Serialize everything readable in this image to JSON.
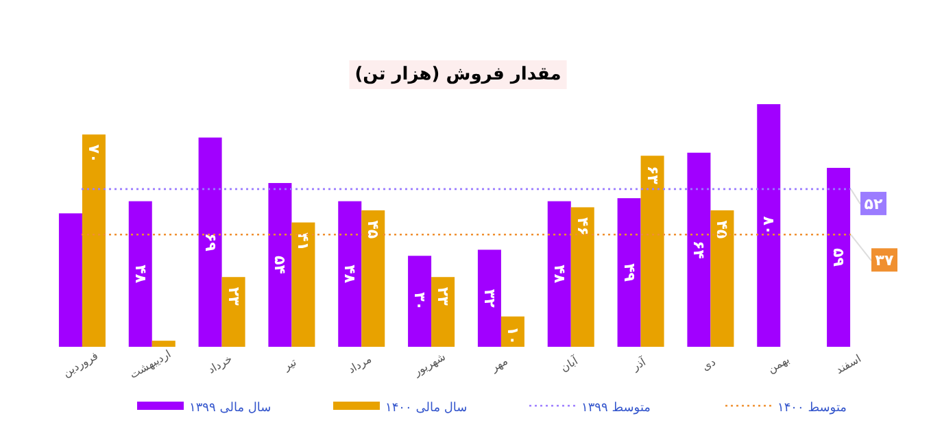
{
  "chart_data": {
    "type": "bar",
    "title": "مقدار فروش (هزار تن)",
    "categories": [
      "فروردین",
      "اردیبهشت",
      "خرداد",
      "تیر",
      "مرداد",
      "شهریور",
      "مهر",
      "آبان",
      "آذر",
      "دی",
      "بهمن",
      "اسفند"
    ],
    "series": [
      {
        "name": "سال مالی ۱۳۹۹",
        "color": "#a100ff",
        "values": [
          44,
          48,
          69,
          54,
          48,
          30,
          32,
          48,
          49,
          64,
          80,
          59
        ],
        "value_labels": [
          null,
          "۴۸",
          "۶۹",
          "۵۴",
          "۴۸",
          "۳۰",
          "۳۲",
          "۴۸",
          "۴۹",
          "۶۴",
          "۸۰",
          "۵۹"
        ]
      },
      {
        "name": "سال مالی ۱۴۰۰",
        "color": "#e8a200",
        "values": [
          70,
          2,
          23,
          41,
          45,
          23,
          10,
          46,
          63,
          45,
          null,
          null
        ],
        "value_labels": [
          "۷۰",
          null,
          "۲۳",
          "۴۱",
          "۴۵",
          "۲۳",
          "۱۰",
          "۴۶",
          "۶۳",
          "۴۵",
          null,
          null
        ]
      },
      {
        "name": "متوسط ۱۳۹۹",
        "type": "line",
        "line_style": "dotted",
        "color": "#9b7cff",
        "values": [
          52,
          52,
          52,
          52,
          52,
          52,
          52,
          52,
          52,
          52,
          52,
          52
        ],
        "value_labels": [
          null,
          null,
          null,
          null,
          null,
          null,
          null,
          null,
          null,
          null,
          null,
          "۵۲"
        ]
      },
      {
        "name": "متوسط ۱۴۰۰",
        "type": "line",
        "line_style": "dotted",
        "color": "#f09030",
        "values": [
          37,
          37,
          37,
          37,
          37,
          37,
          37,
          37,
          37,
          37,
          37,
          37
        ],
        "value_labels": [
          null,
          null,
          null,
          null,
          null,
          null,
          null,
          null,
          null,
          null,
          null,
          "۳۷"
        ]
      }
    ],
    "legend": "bottom"
  }
}
